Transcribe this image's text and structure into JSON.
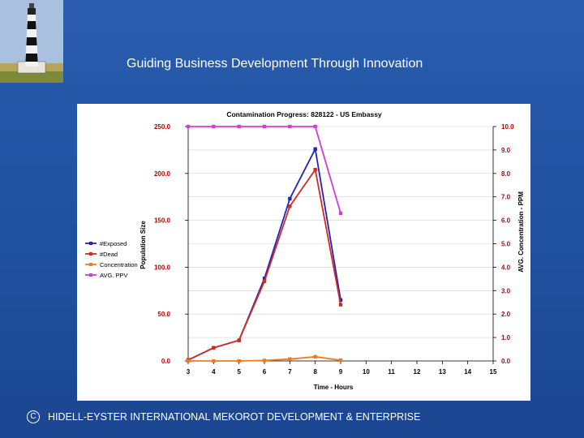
{
  "headline": "Guiding Business Development Through Innovation",
  "footer": {
    "copyright_symbol": "C",
    "text": "HIDELL-EYSTER INTERNATIONAL MEKOROT DEVELOPMENT & ENTERPRISE"
  },
  "colors": {
    "background": "#1f4f9e",
    "exposed": "#1f22c8",
    "dead": "#d42a1c",
    "concentration": "#f07b1e",
    "avg_ppv": "#d23cd8"
  },
  "chart_data": {
    "type": "line",
    "title": "Contamination Progress: 828122 - US Embassy",
    "xlabel": "Time - Hours",
    "ylabel": "Population Size",
    "y2label": "AVG. Concentration - PPM",
    "x": [
      3,
      4,
      5,
      6,
      7,
      8,
      9,
      10,
      11,
      12,
      13,
      14,
      15
    ],
    "xlim": [
      3,
      15
    ],
    "ylim": [
      0,
      250
    ],
    "y2lim": [
      0,
      10
    ],
    "y_ticks": [
      "0.0",
      "50.0",
      "100.0",
      "150.0",
      "200.0",
      "250.0"
    ],
    "y2_ticks": [
      "0.0",
      "1.0",
      "2.0",
      "3.0",
      "4.0",
      "5.0",
      "6.0",
      "7.0",
      "8.0",
      "9.0",
      "10.0"
    ],
    "x_ticks": [
      "3",
      "4",
      "5",
      "6",
      "7",
      "8",
      "9",
      "10",
      "11",
      "12",
      "13",
      "14",
      "15"
    ],
    "legend_position": "left",
    "series": [
      {
        "name": "#Exposed",
        "axis": "left",
        "x": [
          3,
          4,
          5,
          6,
          7,
          8,
          9
        ],
        "values": [
          1,
          14,
          22,
          88,
          173,
          226,
          65
        ]
      },
      {
        "name": "#Dead",
        "axis": "left",
        "x": [
          3,
          4,
          5,
          6,
          7,
          8,
          9
        ],
        "values": [
          1,
          14,
          22,
          85,
          165,
          204,
          60
        ]
      },
      {
        "name": "Concentration",
        "axis": "right",
        "x": [
          3,
          4,
          5,
          6,
          7,
          8,
          9
        ],
        "values": [
          0.0,
          0.0,
          0.0,
          0.02,
          0.08,
          0.18,
          0.03
        ]
      },
      {
        "name": "AVG. PPV",
        "axis": "right",
        "x": [
          3,
          4,
          5,
          6,
          7,
          8,
          9
        ],
        "values": [
          10.0,
          10.0,
          10.0,
          10.0,
          10.0,
          10.0,
          6.3
        ]
      }
    ]
  }
}
